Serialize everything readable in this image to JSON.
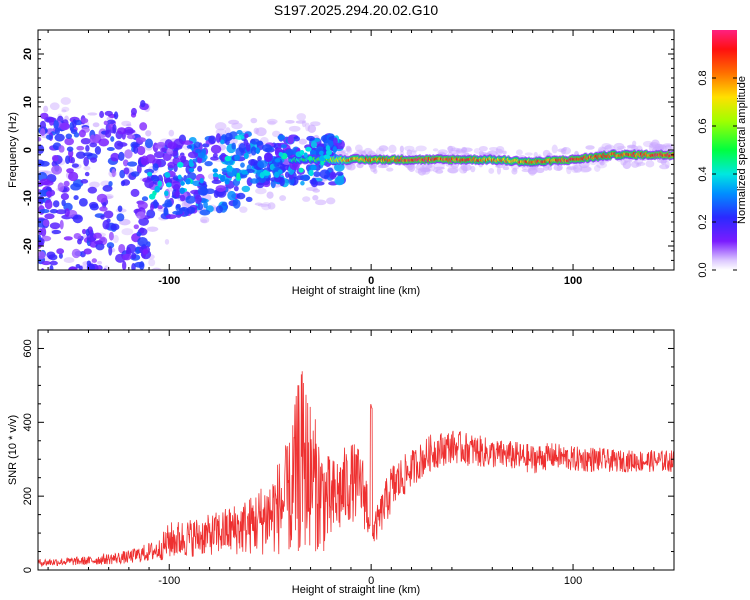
{
  "title": "S197.2025.294.20.02.G10",
  "chart_data": [
    {
      "type": "heatmap",
      "xlabel": "Height of straight line (km)",
      "ylabel": "Frequency (Hz)",
      "xlim": [
        -165,
        150
      ],
      "ylim": [
        -25,
        25
      ],
      "xticks": [
        -100,
        0,
        100
      ],
      "yticks": [
        -20,
        -10,
        0,
        10,
        20
      ],
      "colorbar": {
        "label": "Normalized spectral amplitude",
        "range": [
          0,
          1
        ],
        "ticks": [
          0.0,
          0.2,
          0.4,
          0.6,
          0.8
        ],
        "colormap": "rainbow (violet → blue → cyan → green → yellow → red → magenta)"
      },
      "ridge": {
        "x": [
          -165,
          -140,
          -120,
          -100,
          -80,
          -60,
          -40,
          -25,
          -10,
          0,
          20,
          40,
          60,
          80,
          100,
          120,
          150
        ],
        "y": [
          -10,
          -9,
          -8,
          -6,
          -5,
          -3,
          -2,
          -2,
          -2,
          -2,
          -2,
          -2,
          -2,
          -2.5,
          -2,
          -1,
          -1
        ],
        "amplitude": [
          0.15,
          0.15,
          0.2,
          0.3,
          0.35,
          0.4,
          0.45,
          0.55,
          0.85,
          0.9,
          0.95,
          0.95,
          0.85,
          0.9,
          0.95,
          0.9,
          1.0
        ]
      },
      "grid": false
    },
    {
      "type": "line",
      "xlabel": "Height of straight line (km)",
      "ylabel": "SNR (10 * v/v)",
      "xlim": [
        -165,
        150
      ],
      "ylim": [
        0,
        650
      ],
      "xticks": [
        -100,
        0,
        100
      ],
      "yticks": [
        0,
        200,
        400,
        600
      ],
      "color": "#ee3030",
      "envelope": {
        "x": [
          -165,
          -140,
          -120,
          -105,
          -100,
          -80,
          -60,
          -50,
          -40,
          -35,
          -30,
          -25,
          -20,
          -10,
          -5,
          0,
          1,
          10,
          20,
          30,
          40,
          50,
          60,
          70,
          80,
          90,
          100,
          110,
          120,
          130,
          140,
          150
        ],
        "y": [
          20,
          25,
          35,
          55,
          80,
          95,
          120,
          150,
          200,
          300,
          260,
          200,
          180,
          240,
          230,
          140,
          100,
          220,
          275,
          320,
          335,
          325,
          315,
          310,
          300,
          310,
          300,
          300,
          295,
          295,
          295,
          295
        ],
        "spread": [
          10,
          12,
          18,
          30,
          50,
          55,
          80,
          110,
          160,
          260,
          200,
          160,
          120,
          110,
          100,
          80,
          40,
          70,
          50,
          50,
          45,
          45,
          40,
          40,
          40,
          35,
          35,
          35,
          30,
          30,
          30,
          30
        ]
      },
      "grid": false
    }
  ]
}
